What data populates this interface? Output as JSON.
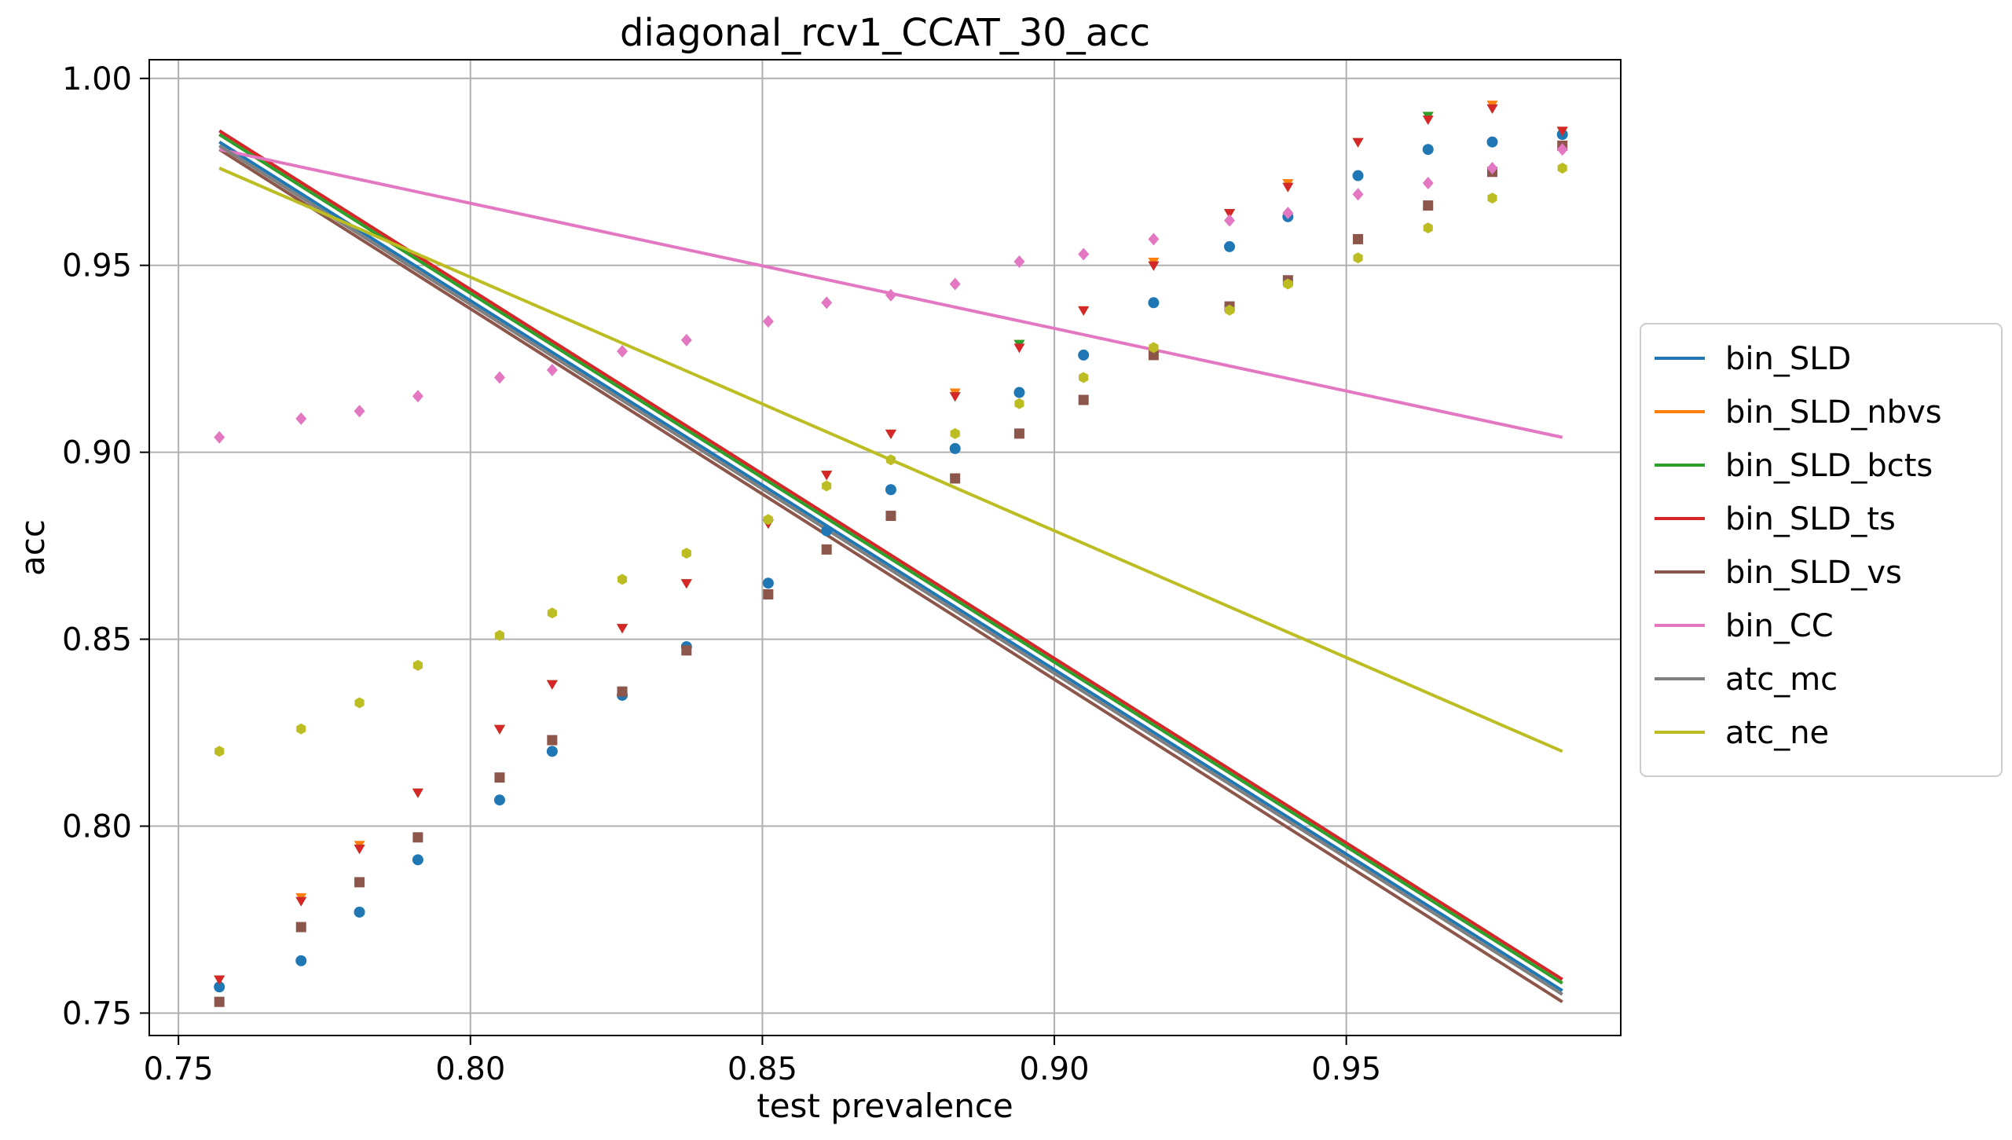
{
  "chart_data": {
    "type": "scatter",
    "title": "diagonal_rcv1_CCAT_30_acc",
    "xlabel": "test prevalence",
    "ylabel": "acc",
    "xlim": [
      0.745,
      0.997
    ],
    "ylim": [
      0.744,
      1.005
    ],
    "xticks": [
      0.75,
      0.8,
      0.85,
      0.9,
      0.95
    ],
    "xtick_labels": [
      "0.75",
      "0.80",
      "0.85",
      "0.90",
      "0.95"
    ],
    "yticks": [
      0.75,
      0.8,
      0.85,
      0.9,
      0.95,
      1.0
    ],
    "ytick_labels": [
      "0.75",
      "0.80",
      "0.85",
      "0.90",
      "0.95",
      "1.00"
    ],
    "grid": true,
    "legend_position": "right, outside plot",
    "x": [
      0.757,
      0.771,
      0.781,
      0.791,
      0.805,
      0.814,
      0.826,
      0.837,
      0.851,
      0.861,
      0.872,
      0.883,
      0.894,
      0.905,
      0.917,
      0.93,
      0.94,
      0.952,
      0.964,
      0.975,
      0.987
    ],
    "series": [
      {
        "name": "bin_SLD",
        "color": "#1f77b4",
        "marker": "circle",
        "values": [
          0.757,
          0.764,
          0.777,
          0.791,
          0.807,
          0.82,
          0.835,
          0.848,
          0.865,
          0.879,
          0.89,
          0.901,
          0.916,
          0.926,
          0.94,
          0.955,
          0.963,
          0.974,
          0.981,
          0.983,
          0.985
        ],
        "fit": [
          0.983,
          0.756
        ]
      },
      {
        "name": "bin_SLD_nbvs",
        "color": "#ff7f0e",
        "marker": "triangle",
        "values": [
          0.759,
          0.781,
          0.795,
          0.809,
          0.826,
          0.838,
          0.853,
          0.865,
          0.881,
          0.894,
          0.905,
          0.916,
          0.929,
          0.938,
          0.951,
          0.964,
          0.972,
          0.983,
          0.99,
          0.993,
          0.986
        ],
        "fit": [
          0.985,
          0.758
        ]
      },
      {
        "name": "bin_SLD_bcts",
        "color": "#2ca02c",
        "marker": "triangle",
        "values": [
          0.759,
          0.78,
          0.794,
          0.809,
          0.826,
          0.838,
          0.853,
          0.865,
          0.881,
          0.894,
          0.905,
          0.915,
          0.929,
          0.938,
          0.95,
          0.964,
          0.971,
          0.983,
          0.99,
          0.992,
          0.986
        ],
        "fit": [
          0.985,
          0.758
        ]
      },
      {
        "name": "bin_SLD_ts",
        "color": "#d62728",
        "marker": "triangle",
        "values": [
          0.759,
          0.78,
          0.794,
          0.809,
          0.826,
          0.838,
          0.853,
          0.865,
          0.881,
          0.894,
          0.905,
          0.915,
          0.928,
          0.938,
          0.95,
          0.964,
          0.971,
          0.983,
          0.989,
          0.992,
          0.986
        ],
        "fit": [
          0.986,
          0.759
        ]
      },
      {
        "name": "bin_SLD_vs",
        "color": "#8c564b",
        "marker": "square",
        "values": [
          0.753,
          0.773,
          0.785,
          0.797,
          0.813,
          0.823,
          0.836,
          0.847,
          0.862,
          0.874,
          0.883,
          0.893,
          0.905,
          0.914,
          0.926,
          0.939,
          0.946,
          0.957,
          0.966,
          0.975,
          0.982
        ],
        "fit": [
          0.981,
          0.753
        ]
      },
      {
        "name": "bin_CC",
        "color": "#e377c2",
        "marker": "diamond",
        "values": [
          0.904,
          0.909,
          0.911,
          0.915,
          0.92,
          0.922,
          0.927,
          0.93,
          0.935,
          0.94,
          0.942,
          0.945,
          0.951,
          0.953,
          0.957,
          0.962,
          0.964,
          0.969,
          0.972,
          0.976,
          0.981
        ],
        "fit": [
          0.981,
          0.904
        ]
      },
      {
        "name": "atc_mc",
        "color": "#7f7f7f",
        "marker": "circle",
        "values": [],
        "fit": [
          0.982,
          0.755
        ]
      },
      {
        "name": "atc_ne",
        "color": "#bcbd22",
        "marker": "hexagon",
        "values": [
          0.82,
          0.826,
          0.833,
          0.843,
          0.851,
          0.857,
          0.866,
          0.873,
          0.882,
          0.891,
          0.898,
          0.905,
          0.913,
          0.92,
          0.928,
          0.938,
          0.945,
          0.952,
          0.96,
          0.968,
          0.976
        ],
        "fit": [
          0.976,
          0.82
        ]
      }
    ]
  }
}
